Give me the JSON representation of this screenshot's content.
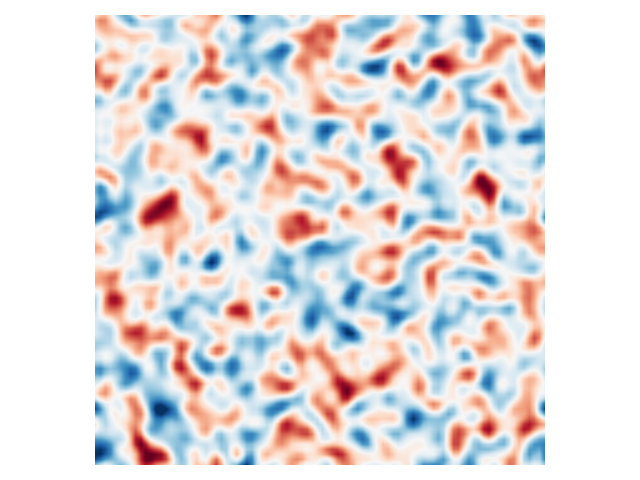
{
  "image": {
    "description_type": "random-field-heatmap",
    "colormap": {
      "name": "RdBu_r",
      "stops": [
        "#053061",
        "#2166ac",
        "#4393c3",
        "#92c5de",
        "#d1e5f0",
        "#f7f7f7",
        "#fddbc7",
        "#f4a582",
        "#d6604d",
        "#b2182b",
        "#67001f"
      ]
    },
    "grid_cells": 90,
    "seed": 20240517
  }
}
